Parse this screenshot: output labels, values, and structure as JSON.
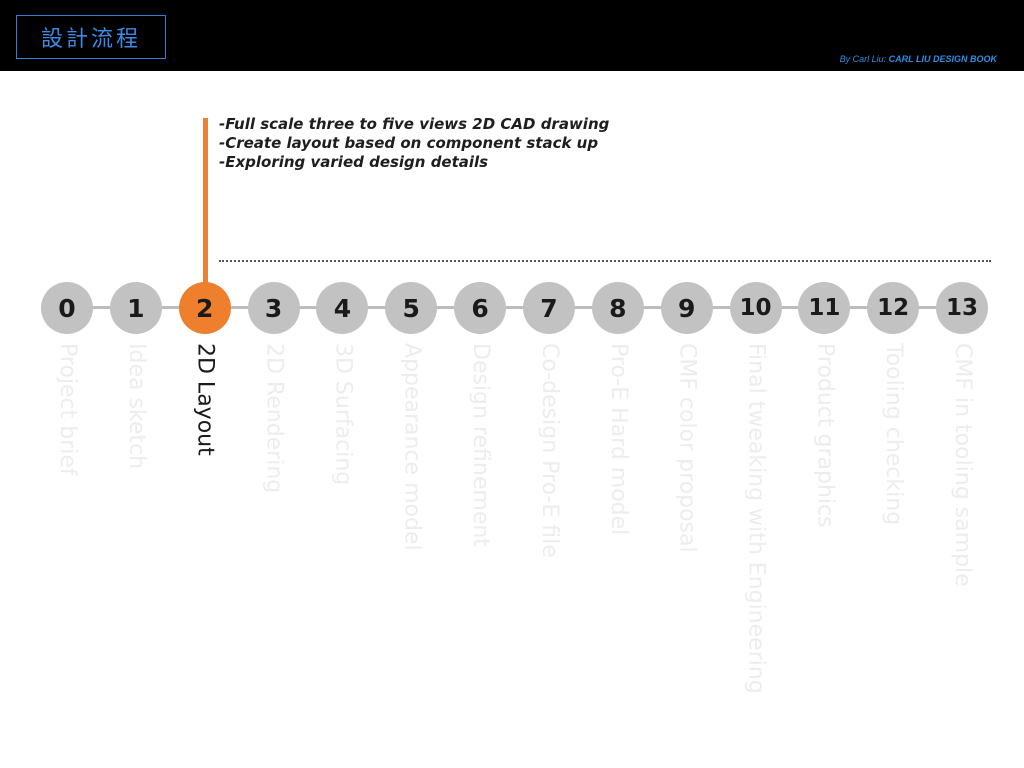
{
  "header": {
    "title": "設計流程",
    "credit_author": "By Carl Liu: ",
    "credit_book": "CARL LIU DESIGN BOOK"
  },
  "notes": [
    "-Full scale three to five views 2D CAD drawing",
    "-Create layout based on component stack up",
    "-Exploring varied design details"
  ],
  "active_step": 2,
  "colors": {
    "accent": "#ee7f2d",
    "node": "#c2c2c2",
    "inactive_label": "#ededed",
    "title_blue": "#3b8ae6"
  },
  "steps": [
    {
      "num": "0",
      "label": "Project brief"
    },
    {
      "num": "1",
      "label": "Idea sketch"
    },
    {
      "num": "2",
      "label": "2D Layout"
    },
    {
      "num": "3",
      "label": "2D Rendering"
    },
    {
      "num": "4",
      "label": "3D Surfacing"
    },
    {
      "num": "5",
      "label": "Appearance model"
    },
    {
      "num": "6",
      "label": "Design refinement"
    },
    {
      "num": "7",
      "label": "Co-design Pro-E file"
    },
    {
      "num": "8",
      "label": "Pro-E Hard model"
    },
    {
      "num": "9",
      "label": "CMF color proposal"
    },
    {
      "num": "10",
      "label": "Final tweaking with Engineering"
    },
    {
      "num": "11",
      "label": "Product graphics"
    },
    {
      "num": "12",
      "label": "Tooling checking"
    },
    {
      "num": "13",
      "label": "CMF in tooling sample"
    }
  ]
}
